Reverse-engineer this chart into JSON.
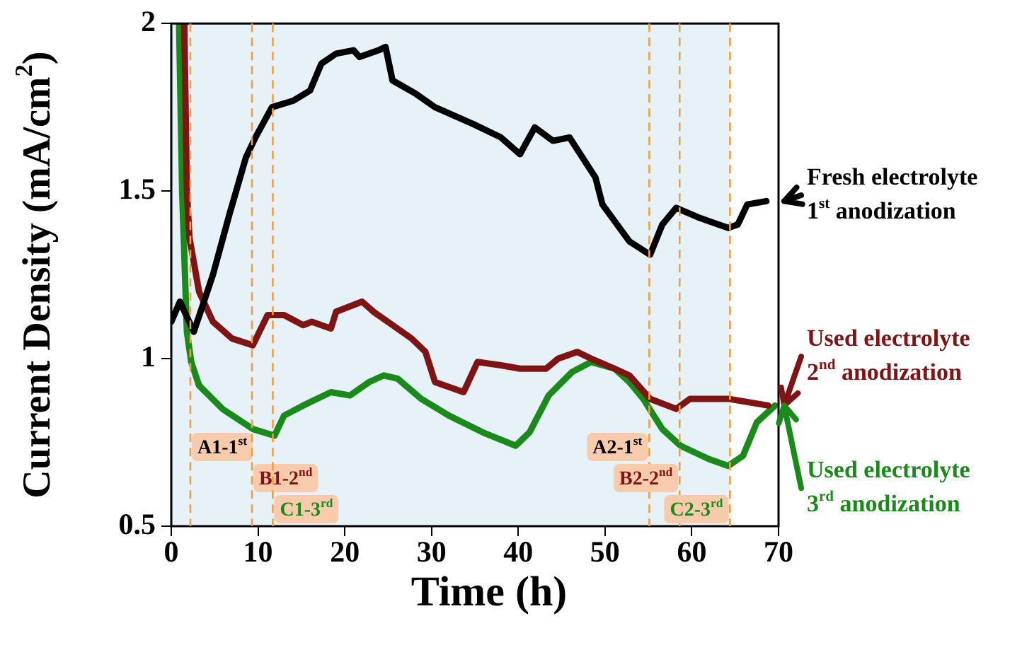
{
  "chart_data": {
    "type": "line",
    "xlabel": "Time (h)",
    "ylabel": "Current Density (mA/cm$^{2}$)",
    "xlim": [
      0,
      70
    ],
    "xticks": [
      0,
      10,
      20,
      30,
      40,
      50,
      60,
      70
    ],
    "ylim": [
      0.5,
      2
    ],
    "yticks": [
      0.5,
      1,
      1.5,
      2
    ],
    "grid": false,
    "legend": "right",
    "marker": "none",
    "line_style": "solid",
    "series": [
      {
        "name": "Fresh electrolyte\n1$^{st}$ anodization",
        "color": "#000000",
        "x": [
          0,
          1,
          2.6,
          4.8,
          6.7,
          8.6,
          9.7,
          11.6,
          14.1,
          16.0,
          17.3,
          19.0,
          21.0,
          21.7,
          23.9,
          24.7,
          25.5,
          28.2,
          30.4,
          34.8,
          38.0,
          40.2,
          41.9,
          44.0,
          45.9,
          48.9,
          49.7,
          52.8,
          55.2,
          56.6,
          58.2,
          60.9,
          64.2,
          65.3,
          66.4,
          68.6
        ],
        "values": [
          1.11,
          1.17,
          1.08,
          1.25,
          1.43,
          1.6,
          1.66,
          1.75,
          1.77,
          1.8,
          1.88,
          1.91,
          1.92,
          1.9,
          1.92,
          1.93,
          1.83,
          1.79,
          1.75,
          1.7,
          1.66,
          1.61,
          1.69,
          1.65,
          1.66,
          1.54,
          1.46,
          1.35,
          1.31,
          1.4,
          1.45,
          1.42,
          1.39,
          1.4,
          1.46,
          1.47
        ]
      },
      {
        "name": "Used electrolyte\n2$^{nd}$ anodization",
        "color": "#7f1414",
        "x": [
          1.5,
          1.8,
          2.1,
          3.2,
          4.8,
          7.0,
          9.4,
          11.1,
          13.0,
          15.2,
          16.2,
          18.4,
          19.0,
          22.0,
          23.3,
          25.5,
          27.7,
          29.3,
          30.4,
          33.7,
          35.3,
          38.0,
          40.2,
          43.2,
          44.6,
          46.8,
          48.4,
          51.1,
          52.8,
          55.2,
          58.2,
          59.8,
          64.2,
          68.8
        ],
        "values": [
          2.0,
          1.5,
          1.36,
          1.2,
          1.11,
          1.06,
          1.04,
          1.13,
          1.13,
          1.1,
          1.11,
          1.09,
          1.14,
          1.17,
          1.14,
          1.1,
          1.06,
          1.02,
          0.93,
          0.9,
          0.99,
          0.98,
          0.97,
          0.97,
          1.0,
          1.02,
          1.0,
          0.97,
          0.95,
          0.88,
          0.85,
          0.88,
          0.88,
          0.86
        ]
      },
      {
        "name": "Used electrolyte\n3$^{rd}$ anodization",
        "color": "#1a8a1a",
        "x": [
          0.9,
          1.25,
          1.8,
          2.3,
          3.2,
          5.9,
          9.4,
          11.9,
          13.0,
          15.2,
          18.4,
          20.6,
          22.8,
          24.5,
          26.1,
          28.8,
          32.0,
          35.9,
          39.7,
          41.3,
          43.5,
          46.2,
          48.4,
          51.1,
          52.8,
          54.4,
          56.6,
          58.7,
          62.0,
          64.2,
          65.9,
          67.5,
          69.6
        ],
        "values": [
          2.0,
          1.5,
          1.08,
          0.99,
          0.92,
          0.85,
          0.79,
          0.77,
          0.83,
          0.86,
          0.9,
          0.89,
          0.93,
          0.95,
          0.94,
          0.88,
          0.83,
          0.78,
          0.74,
          0.78,
          0.89,
          0.96,
          0.99,
          0.97,
          0.93,
          0.88,
          0.79,
          0.74,
          0.7,
          0.68,
          0.71,
          0.81,
          0.86
        ]
      }
    ],
    "bands": [
      {
        "axis": "x",
        "from": 0,
        "to": 64.4,
        "color": "#e6f2f8"
      }
    ],
    "ref_lines": [
      {
        "axis": "x",
        "value": 2.2,
        "label": "A1-1$^{st}$",
        "color": "#f0a040",
        "line_style": "dashed"
      },
      {
        "axis": "x",
        "value": 9.3,
        "label": "B1-2$^{nd}$",
        "color": "#f0a040",
        "line_style": "dashed"
      },
      {
        "axis": "x",
        "value": 11.7,
        "label": "C1-3$^{rd}$",
        "color": "#f0a040",
        "line_style": "dashed"
      },
      {
        "axis": "x",
        "value": 55.1,
        "label": "A2-1$^{st}$",
        "color": "#f0a040",
        "line_style": "dashed"
      },
      {
        "axis": "x",
        "value": 58.6,
        "label": "B2-2$^{nd}$",
        "color": "#f0a040",
        "line_style": "dashed"
      },
      {
        "axis": "x",
        "value": 64.4,
        "label": "C2-3$^{rd}$",
        "color": "#f0a040",
        "line_style": "dashed"
      }
    ]
  }
}
